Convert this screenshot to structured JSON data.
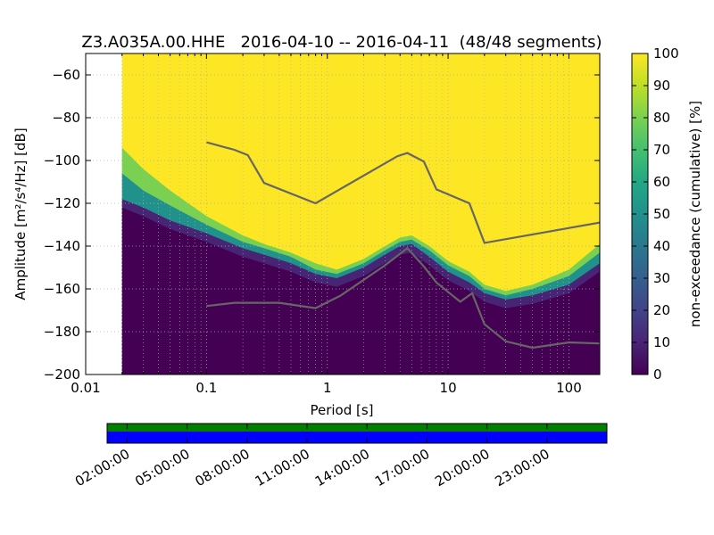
{
  "chart_data": [
    {
      "type": "heatmap",
      "title": "Z3.A035A.00.HHE   2016-04-10 -- 2016-04-11  (48/48 segments)",
      "xlabel": "Period [s]",
      "ylabel": "Amplitude [m²/s⁴/Hz] [dB]",
      "x_scale": "log",
      "xlim": [
        0.01,
        180
      ],
      "ylim": [
        -200,
        -50
      ],
      "x_ticks": [
        0.01,
        0.1,
        1,
        10,
        100
      ],
      "x_tick_labels": [
        "0.01",
        "0.1",
        "1",
        "10",
        "100"
      ],
      "y_ticks": [
        -60,
        -80,
        -100,
        -120,
        -140,
        -160,
        -180,
        -200
      ],
      "y_tick_labels": [
        "−60",
        "−80",
        "−100",
        "−120",
        "−140",
        "−160",
        "−180",
        "−200"
      ],
      "grid": true,
      "data_period_start": 0.02,
      "colorbar": {
        "label": "non-exceedance (cumulative) [%]",
        "range": [
          0,
          100
        ],
        "ticks": [
          0,
          10,
          20,
          30,
          40,
          50,
          60,
          70,
          80,
          90,
          100
        ],
        "colormap": "viridis"
      },
      "psd_bands": [
        {
          "period": 0.02,
          "p0": -200,
          "p10": -118,
          "p50": -106,
          "p90": -94
        },
        {
          "period": 0.03,
          "p0": -200,
          "p10": -122,
          "p50": -114,
          "p90": -104
        },
        {
          "period": 0.05,
          "p0": -200,
          "p10": -128,
          "p50": -121,
          "p90": -114
        },
        {
          "period": 0.1,
          "p0": -200,
          "p10": -134,
          "p50": -130,
          "p90": -126
        },
        {
          "period": 0.2,
          "p0": -200,
          "p10": -141,
          "p50": -138,
          "p90": -135
        },
        {
          "period": 0.3,
          "p0": -200,
          "p10": -144,
          "p50": -141,
          "p90": -139
        },
        {
          "period": 0.5,
          "p0": -200,
          "p10": -148,
          "p50": -145,
          "p90": -143
        },
        {
          "period": 0.8,
          "p0": -200,
          "p10": -153,
          "p50": -151,
          "p90": -148
        },
        {
          "period": 1.2,
          "p0": -200,
          "p10": -155,
          "p50": -153,
          "p90": -151
        },
        {
          "period": 2,
          "p0": -200,
          "p10": -150,
          "p50": -148,
          "p90": -146
        },
        {
          "period": 3,
          "p0": -200,
          "p10": -144,
          "p50": -142,
          "p90": -140
        },
        {
          "period": 4,
          "p0": -200,
          "p10": -140,
          "p50": -138,
          "p90": -136
        },
        {
          "period": 5,
          "p0": -200,
          "p10": -139,
          "p50": -137,
          "p90": -135
        },
        {
          "period": 7,
          "p0": -200,
          "p10": -145,
          "p50": -142,
          "p90": -140
        },
        {
          "period": 10,
          "p0": -200,
          "p10": -152,
          "p50": -149,
          "p90": -147
        },
        {
          "period": 15,
          "p0": -200,
          "p10": -157,
          "p50": -154,
          "p90": -152
        },
        {
          "period": 20,
          "p0": -200,
          "p10": -162,
          "p50": -160,
          "p90": -158
        },
        {
          "period": 30,
          "p0": -200,
          "p10": -165,
          "p50": -163,
          "p90": -161
        },
        {
          "period": 50,
          "p0": -200,
          "p10": -163,
          "p50": -160,
          "p90": -158
        },
        {
          "period": 100,
          "p0": -200,
          "p10": -158,
          "p50": -154,
          "p90": -151
        },
        {
          "period": 180,
          "p0": -200,
          "p10": -148,
          "p50": -143,
          "p90": -139
        }
      ],
      "series": [
        {
          "x": [
            0.1,
            0.17,
            0.22,
            0.3,
            0.8,
            3.8,
            4.6,
            6.3,
            8,
            15,
            20,
            180
          ],
          "y": [
            -91.5,
            -95,
            -97.5,
            -110.5,
            -120,
            -98,
            -96.5,
            -100.5,
            -113.5,
            -120,
            -138.5,
            -129
          ]
        },
        {
          "x": [
            0.1,
            0.17,
            0.4,
            0.8,
            1.3,
            3,
            4.6,
            6.3,
            8,
            12.6,
            15.8,
            20,
            30,
            50,
            100,
            180
          ],
          "y": [
            -168,
            -166.5,
            -166.5,
            -169,
            -163,
            -149,
            -141,
            -149.5,
            -157,
            -166,
            -162,
            -176.5,
            -184.5,
            -187.5,
            -185,
            -185.5
          ]
        }
      ]
    },
    {
      "type": "bar",
      "x_tick_labels": [
        "02:00:00",
        "05:00:00",
        "08:00:00",
        "11:00:00",
        "14:00:00",
        "17:00:00",
        "20:00:00",
        "23:00:00"
      ],
      "colors": {
        "used": "#007f00",
        "available": "#0000ff"
      }
    }
  ]
}
